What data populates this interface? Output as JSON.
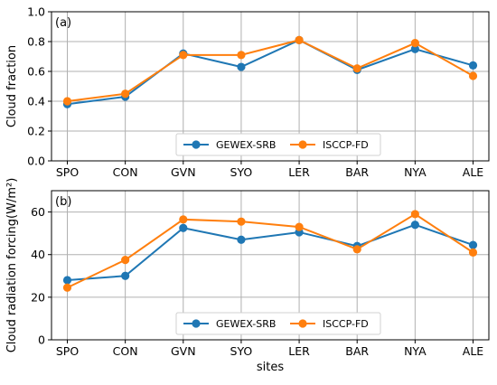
{
  "chart_data": [
    {
      "type": "line",
      "panel_label": "(a)",
      "categories": [
        "SPO",
        "CON",
        "GVN",
        "SYO",
        "LER",
        "BAR",
        "NYA",
        "ALE"
      ],
      "ylabel": "Cloud fraction",
      "ylim": [
        0.0,
        1.0
      ],
      "yticks": [
        "0.0",
        "0.2",
        "0.4",
        "0.6",
        "0.8",
        "1.0"
      ],
      "grid": true,
      "legend_placement": "bottom-center",
      "series": [
        {
          "name": "GEWEX-SRB",
          "color": "#1f77b4",
          "values": [
            0.38,
            0.43,
            0.72,
            0.63,
            0.81,
            0.61,
            0.75,
            0.64
          ]
        },
        {
          "name": "ISCCP-FD",
          "color": "#ff7f0e",
          "values": [
            0.4,
            0.45,
            0.71,
            0.71,
            0.81,
            0.62,
            0.79,
            0.57
          ]
        }
      ]
    },
    {
      "type": "line",
      "panel_label": "(b)",
      "categories": [
        "SPO",
        "CON",
        "GVN",
        "SYO",
        "LER",
        "BAR",
        "NYA",
        "ALE"
      ],
      "xlabel": "sites",
      "ylabel": "Cloud radiation forcing(W/m²)",
      "ylim": [
        0,
        70
      ],
      "yticks": [
        "0",
        "20",
        "40",
        "60"
      ],
      "grid": true,
      "legend_placement": "bottom-center",
      "series": [
        {
          "name": "GEWEX-SRB",
          "color": "#1f77b4",
          "values": [
            28,
            30,
            52.5,
            47,
            50.5,
            44,
            54,
            44.5
          ]
        },
        {
          "name": "ISCCP-FD",
          "color": "#ff7f0e",
          "values": [
            24.5,
            37.5,
            56.5,
            55.5,
            53,
            42.5,
            59,
            41
          ]
        }
      ]
    }
  ]
}
